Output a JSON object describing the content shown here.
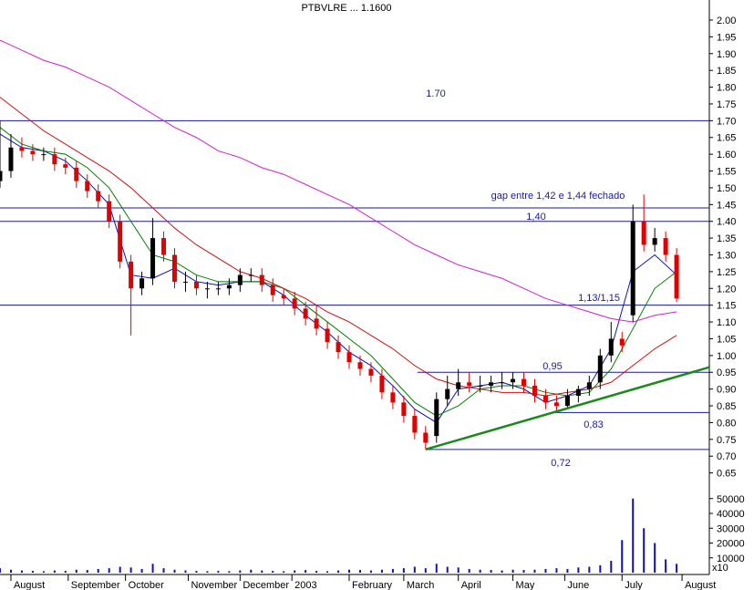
{
  "chart_data": {
    "type": "candlestick",
    "title": "PTBVLRE ... 1.1600",
    "x": [
      0,
      4,
      8,
      12,
      16,
      20,
      24,
      28,
      32,
      36,
      40,
      44,
      48,
      52,
      56,
      60,
      64,
      68,
      72,
      76,
      80,
      84,
      88,
      92,
      96,
      100,
      104,
      108,
      112,
      116,
      120,
      124,
      128,
      132,
      136,
      140,
      144,
      148,
      152,
      156,
      160,
      164,
      168,
      172,
      176,
      180,
      184,
      188,
      192,
      196,
      200,
      204,
      208,
      212,
      216,
      220,
      224,
      228,
      232,
      236,
      240,
      244,
      248
    ],
    "open": [
      1.52,
      1.55,
      1.62,
      1.61,
      1.6,
      1.6,
      1.57,
      1.56,
      1.52,
      1.49,
      1.46,
      1.4,
      1.28,
      1.2,
      1.23,
      1.35,
      1.3,
      1.22,
      1.22,
      1.2,
      1.2,
      1.2,
      1.21,
      1.24,
      1.24,
      1.21,
      1.18,
      1.17,
      1.14,
      1.11,
      1.08,
      1.04,
      1.01,
      0.98,
      0.96,
      0.94,
      0.89,
      0.86,
      0.82,
      0.77,
      0.76,
      0.87,
      0.9,
      0.92,
      0.91,
      0.91,
      0.92,
      0.92,
      0.93,
      0.91,
      0.88,
      0.86,
      0.85,
      0.88,
      0.9,
      0.92,
      1.0,
      1.05,
      1.12,
      1.4,
      1.33,
      1.35,
      1.3
    ],
    "high": [
      1.7,
      1.66,
      1.65,
      1.63,
      1.62,
      1.62,
      1.59,
      1.58,
      1.54,
      1.51,
      1.48,
      1.42,
      1.3,
      1.25,
      1.41,
      1.37,
      1.32,
      1.25,
      1.24,
      1.22,
      1.22,
      1.23,
      1.26,
      1.26,
      1.26,
      1.23,
      1.2,
      1.19,
      1.16,
      1.15,
      1.1,
      1.06,
      1.03,
      1.0,
      0.98,
      0.96,
      0.91,
      0.88,
      0.84,
      0.79,
      0.89,
      0.94,
      0.96,
      0.95,
      0.94,
      0.94,
      0.95,
      0.95,
      0.95,
      0.93,
      0.9,
      0.88,
      0.9,
      0.91,
      0.94,
      1.02,
      1.1,
      1.07,
      1.45,
      1.48,
      1.38,
      1.37,
      1.32
    ],
    "low": [
      1.5,
      1.53,
      1.59,
      1.58,
      1.58,
      1.55,
      1.54,
      1.5,
      1.47,
      1.44,
      1.38,
      1.26,
      1.06,
      1.18,
      1.21,
      1.28,
      1.2,
      1.19,
      1.18,
      1.17,
      1.18,
      1.18,
      1.19,
      1.22,
      1.19,
      1.16,
      1.15,
      1.12,
      1.09,
      1.06,
      1.02,
      0.99,
      0.96,
      0.94,
      0.92,
      0.87,
      0.84,
      0.8,
      0.75,
      0.72,
      0.74,
      0.85,
      0.88,
      0.89,
      0.89,
      0.89,
      0.9,
      0.9,
      0.89,
      0.86,
      0.84,
      0.83,
      0.84,
      0.86,
      0.88,
      0.9,
      0.98,
      1.01,
      1.1,
      1.31,
      1.31,
      1.28,
      1.16
    ],
    "close": [
      1.55,
      1.62,
      1.61,
      1.6,
      1.6,
      1.57,
      1.56,
      1.52,
      1.49,
      1.46,
      1.4,
      1.28,
      1.2,
      1.23,
      1.35,
      1.3,
      1.22,
      1.22,
      1.2,
      1.2,
      1.2,
      1.21,
      1.24,
      1.24,
      1.21,
      1.18,
      1.17,
      1.14,
      1.11,
      1.08,
      1.04,
      1.01,
      0.98,
      0.96,
      0.94,
      0.89,
      0.86,
      0.82,
      0.77,
      0.74,
      0.87,
      0.9,
      0.92,
      0.91,
      0.91,
      0.92,
      0.92,
      0.93,
      0.91,
      0.88,
      0.86,
      0.85,
      0.88,
      0.9,
      0.92,
      1.0,
      1.05,
      1.03,
      1.4,
      1.33,
      1.35,
      1.3,
      1.17
    ],
    "up_color": "#000000",
    "down_color": "#e00000",
    "ma_x": [
      0,
      8,
      16,
      24,
      32,
      40,
      48,
      56,
      64,
      72,
      80,
      88,
      96,
      104,
      112,
      120,
      128,
      136,
      144,
      152,
      160,
      168,
      176,
      184,
      192,
      200,
      208,
      216,
      224,
      232,
      240,
      248
    ],
    "moving_averages": [
      {
        "color": "#1010c0",
        "values": [
          1.66,
          1.62,
          1.61,
          1.58,
          1.52,
          1.45,
          1.24,
          1.23,
          1.26,
          1.22,
          1.21,
          1.22,
          1.22,
          1.18,
          1.12,
          1.07,
          1.01,
          0.97,
          0.91,
          0.84,
          0.8,
          0.9,
          0.91,
          0.92,
          0.9,
          0.86,
          0.88,
          0.91,
          1.02,
          1.25,
          1.3,
          1.24
        ]
      },
      {
        "color": "#008000",
        "values": [
          1.68,
          1.63,
          1.61,
          1.6,
          1.56,
          1.5,
          1.4,
          1.3,
          1.28,
          1.24,
          1.22,
          1.22,
          1.22,
          1.2,
          1.15,
          1.1,
          1.05,
          1.0,
          0.93,
          0.86,
          0.82,
          0.85,
          0.9,
          0.91,
          0.91,
          0.89,
          0.88,
          0.89,
          0.96,
          1.08,
          1.2,
          1.25
        ]
      },
      {
        "color": "#d01010",
        "values": [
          1.77,
          1.72,
          1.67,
          1.63,
          1.59,
          1.55,
          1.5,
          1.44,
          1.38,
          1.33,
          1.29,
          1.25,
          1.23,
          1.2,
          1.17,
          1.13,
          1.1,
          1.06,
          1.02,
          0.97,
          0.93,
          0.91,
          0.9,
          0.89,
          0.89,
          0.88,
          0.89,
          0.9,
          0.92,
          0.97,
          1.02,
          1.06
        ]
      },
      {
        "color": "#d020d0",
        "values": [
          1.94,
          1.91,
          1.88,
          1.86,
          1.83,
          1.8,
          1.76,
          1.72,
          1.68,
          1.65,
          1.61,
          1.59,
          1.56,
          1.54,
          1.51,
          1.48,
          1.45,
          1.41,
          1.37,
          1.33,
          1.3,
          1.27,
          1.25,
          1.23,
          1.2,
          1.17,
          1.15,
          1.13,
          1.11,
          1.1,
          1.12,
          1.13
        ]
      }
    ],
    "hlines": [
      {
        "value": 1.7,
        "from": 0
      },
      {
        "value": 1.44,
        "from": 0
      },
      {
        "value": 1.4,
        "from": 0
      },
      {
        "value": 1.15,
        "from": 0
      },
      {
        "value": 0.95,
        "from": 153
      },
      {
        "value": 0.83,
        "from": 203
      },
      {
        "value": 0.72,
        "from": 156
      }
    ],
    "trendline": {
      "x": [
        156,
        260
      ],
      "y": [
        0.72,
        0.965
      ],
      "color": "#1a8a1a"
    },
    "annotations": [
      "1.70",
      "gap entre 1,42 e 1,44 fechado",
      "1,40",
      "1,13/1,15",
      "0,95",
      "0,83",
      "0,72"
    ],
    "xlim": [
      0,
      260
    ],
    "xticks": [
      {
        "value": 4,
        "label": "August"
      },
      {
        "value": 25,
        "label": "September"
      },
      {
        "value": 46,
        "label": "October"
      },
      {
        "value": 69,
        "label": "November"
      },
      {
        "value": 88,
        "label": "December"
      },
      {
        "value": 107,
        "label": "2003"
      },
      {
        "value": 128,
        "label": "February"
      },
      {
        "value": 148,
        "label": "March"
      },
      {
        "value": 168,
        "label": "April"
      },
      {
        "value": 188,
        "label": "May"
      },
      {
        "value": 207,
        "label": "June"
      },
      {
        "value": 228,
        "label": "July"
      },
      {
        "value": 250,
        "label": "August"
      }
    ],
    "ylim": [
      0.6,
      2.05
    ],
    "yticks": [
      {
        "value": 2,
        "label": "2.00"
      },
      1.95,
      {
        "value": 1.9,
        "label": "1.90"
      },
      1.85,
      {
        "value": 1.8,
        "label": "1.80"
      },
      1.75,
      {
        "value": 1.7,
        "label": "1.70"
      },
      1.65,
      {
        "value": 1.6,
        "label": "1.60"
      },
      1.55,
      {
        "value": 1.5,
        "label": "1.50"
      },
      1.45,
      {
        "value": 1.4,
        "label": "1.40"
      },
      1.35,
      {
        "value": 1.3,
        "label": "1.30"
      },
      1.25,
      {
        "value": 1.2,
        "label": "1.20"
      },
      1.15,
      {
        "value": 1.1,
        "label": "1.10"
      },
      1.05,
      {
        "value": 1,
        "label": "1.00"
      },
      0.95,
      {
        "value": 0.9,
        "label": "0.90"
      },
      0.85,
      {
        "value": 0.8,
        "label": "0.80"
      },
      0.75,
      {
        "value": 0.7,
        "label": "0.70"
      },
      0.65
    ],
    "volume": {
      "color": "#1010c0",
      "unit_label": "x10",
      "ylim": [
        0,
        52000
      ],
      "yticks": [
        50000,
        40000,
        30000,
        20000,
        10000
      ],
      "values": [
        3000,
        2000,
        1500,
        1200,
        1000,
        1500,
        1200,
        2000,
        1800,
        2500,
        3000,
        4000,
        3500,
        2500,
        6000,
        3000,
        2000,
        1500,
        1200,
        1000,
        1200,
        1000,
        1500,
        2000,
        1500,
        1200,
        1000,
        1500,
        1800,
        1200,
        1000,
        1500,
        2000,
        1800,
        1500,
        2000,
        2500,
        3000,
        4000,
        3000,
        6000,
        4000,
        3500,
        2500,
        2000,
        1800,
        1500,
        2000,
        1800,
        2000,
        2500,
        3000,
        2500,
        3500,
        4000,
        5000,
        8000,
        22000,
        50000,
        30000,
        20000,
        9000,
        6000
      ]
    }
  }
}
